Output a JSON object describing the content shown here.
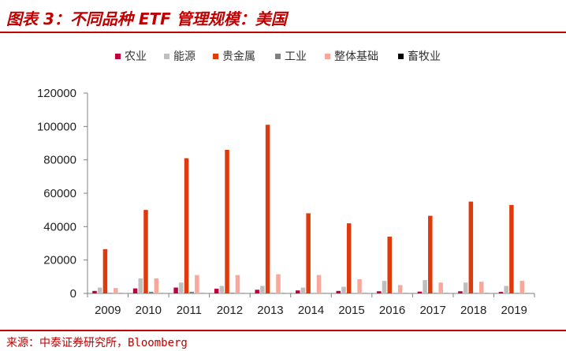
{
  "title": "图表 3：不同品种 ETF 管理规模：美国",
  "source": "来源：中泰证券研究所，Bloomberg",
  "chart_data": {
    "type": "bar",
    "categories": [
      "2009",
      "2010",
      "2011",
      "2012",
      "2013",
      "2014",
      "2015",
      "2016",
      "2017",
      "2018",
      "2019"
    ],
    "series": [
      {
        "name": "农业",
        "color": "#c0003a",
        "values": [
          1500,
          3000,
          3500,
          2800,
          2200,
          1800,
          1500,
          1300,
          1100,
          1300,
          900
        ]
      },
      {
        "name": "能源",
        "color": "#bfbfbf",
        "values": [
          3500,
          9000,
          6500,
          4500,
          4500,
          3500,
          4000,
          7500,
          8000,
          6500,
          4500
        ]
      },
      {
        "name": "贵金属",
        "color": "#e03a0c",
        "values": [
          26500,
          50000,
          81000,
          86000,
          101000,
          48000,
          42000,
          34000,
          46500,
          55000,
          53000
        ]
      },
      {
        "name": "工业",
        "color": "#808080",
        "values": [
          300,
          1000,
          1000,
          400,
          300,
          200,
          200,
          200,
          300,
          300,
          300
        ]
      },
      {
        "name": "整体基础",
        "color": "#f7a89b",
        "values": [
          3200,
          9000,
          11000,
          11000,
          11500,
          11000,
          8500,
          5000,
          6500,
          7000,
          7500
        ]
      },
      {
        "name": "畜牧业",
        "color": "#000000",
        "values": [
          50,
          50,
          50,
          50,
          50,
          50,
          50,
          50,
          50,
          50,
          50
        ]
      }
    ],
    "ylim": [
      0,
      120000
    ],
    "yticks": [
      0,
      20000,
      40000,
      60000,
      80000,
      100000,
      120000
    ],
    "legend": "top",
    "grid": false
  }
}
